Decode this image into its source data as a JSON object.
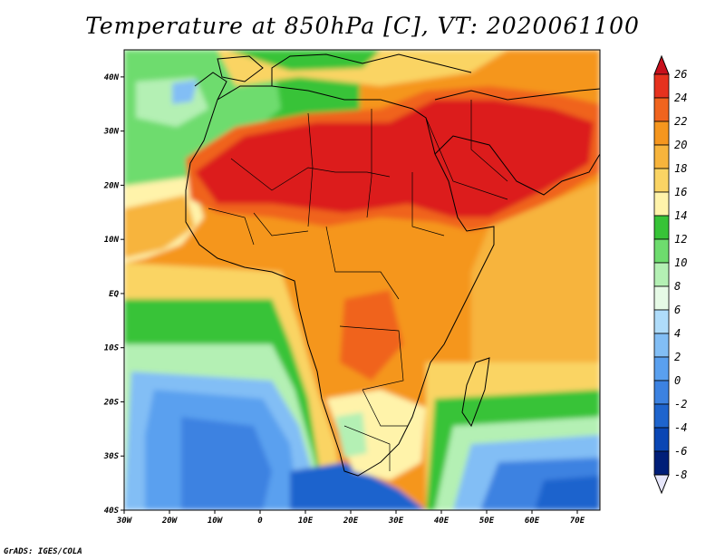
{
  "title": "Temperature at 850hPa [C], VT: 2020061100",
  "credit": "GrADS: IGES/COLA",
  "map": {
    "variable": "Temperature at 850hPa",
    "units": "C",
    "valid_time": "2020061100",
    "lon_range": [
      -30,
      75
    ],
    "lat_range": [
      -40,
      45
    ],
    "lon_ticks": [
      "30W",
      "20W",
      "10W",
      "0",
      "10E",
      "20E",
      "30E",
      "40E",
      "50E",
      "60E",
      "70E"
    ],
    "lat_ticks": [
      "40N",
      "30N",
      "20N",
      "10N",
      "EQ",
      "10S",
      "20S",
      "30S",
      "40S"
    ],
    "projection": "latlon"
  },
  "colorbar": {
    "labels": [
      "26",
      "24",
      "22",
      "20",
      "18",
      "16",
      "14",
      "12",
      "10",
      "8",
      "6",
      "4",
      "2",
      "0",
      "-2",
      "-4",
      "-6",
      "-8"
    ],
    "colors": [
      "#c8101c",
      "#e6321e",
      "#f0641e",
      "#f5961e",
      "#f7b43c",
      "#fad464",
      "#fff3aa",
      "#37c337",
      "#6edc6e",
      "#b4f0b4",
      "#e6fae6",
      "#afdcfa",
      "#82bef5",
      "#5aa0ef",
      "#3c82e1",
      "#1e64cd",
      "#0a46b4",
      "#001e78"
    ]
  },
  "colors": {
    "coast": "#000000",
    "water_hot": "#dc1e1e"
  }
}
